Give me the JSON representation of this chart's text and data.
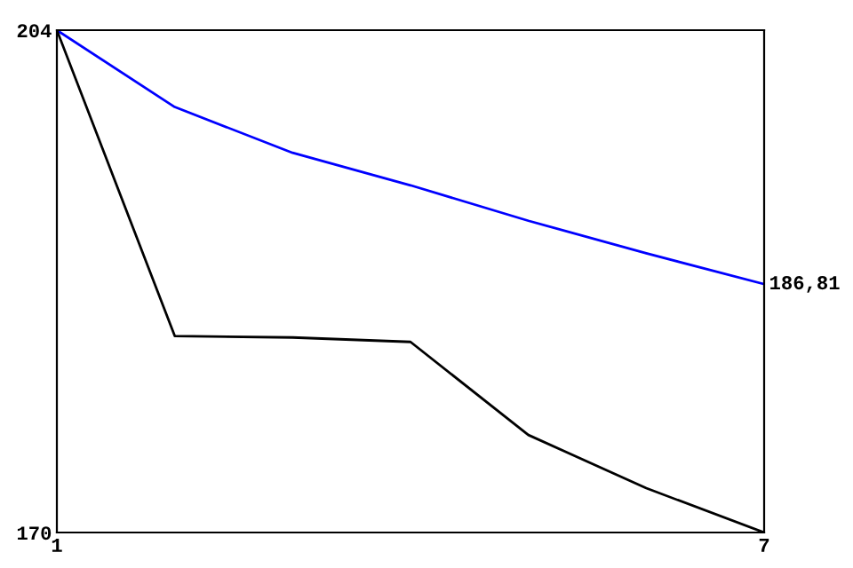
{
  "chart_data": {
    "type": "line",
    "x": [
      1,
      2,
      3,
      4,
      5,
      6,
      7
    ],
    "series": [
      {
        "color": "#0000ff",
        "values": [
          204,
          198.8,
          195.7,
          193.5,
          191.1,
          188.9,
          186.81
        ]
      },
      {
        "color": "#000000",
        "values": [
          204,
          183.3,
          183.2,
          182.9,
          176.6,
          173.0,
          170
        ]
      }
    ],
    "xlim": [
      1,
      7
    ],
    "ylim": [
      170,
      204
    ],
    "xticks": [
      1,
      7
    ],
    "yticks": [
      170,
      204
    ],
    "annotations": [
      {
        "text": "186,81",
        "x": 7,
        "y": 186.81
      }
    ],
    "grid": false,
    "legend": false,
    "marker": "none",
    "line_style": "solid"
  }
}
